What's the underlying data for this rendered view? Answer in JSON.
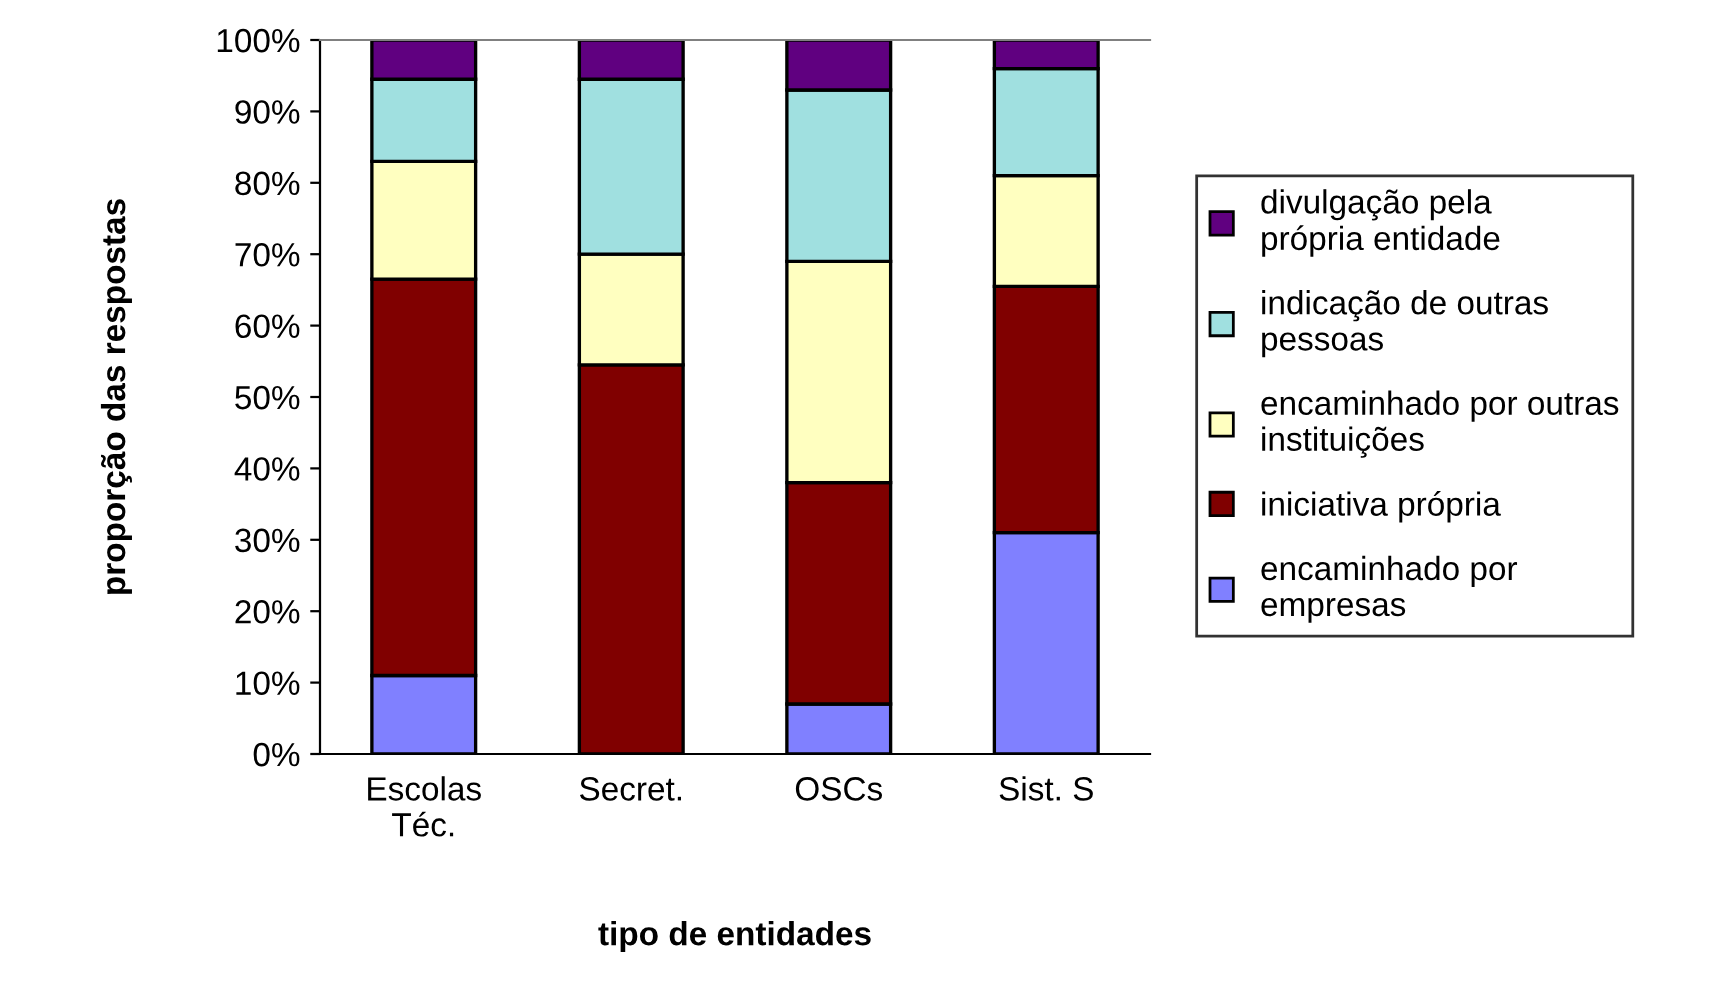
{
  "chart_data": {
    "type": "bar",
    "stacked": true,
    "xlabel": "tipo de entidades",
    "ylabel": "proporção das respostas",
    "categories": [
      "Escolas Téc.",
      "Secret.",
      "OSCs",
      "Sist. S"
    ],
    "series": [
      {
        "name": "encaminhado por empresas",
        "color": "#8080ff",
        "values": [
          11,
          0,
          7,
          31
        ]
      },
      {
        "name": "iniciativa própria",
        "color": "#800000",
        "values": [
          55.5,
          54.5,
          31,
          34.5
        ]
      },
      {
        "name": "encaminhado por outras instituições",
        "color": "#ffffc0",
        "values": [
          16.5,
          15.5,
          31,
          15.5
        ]
      },
      {
        "name": "indicação de outras pessoas",
        "color": "#a0e0e0",
        "values": [
          11.5,
          24.5,
          24,
          15
        ]
      },
      {
        "name": "divulgação pela própria entidade",
        "color": "#600080",
        "values": [
          5.5,
          5.5,
          7,
          4
        ]
      }
    ],
    "ylim": [
      0,
      100
    ],
    "yticks": [
      {
        "value": 0,
        "label": "0%"
      },
      {
        "value": 10,
        "label": "10%"
      },
      {
        "value": 20,
        "label": "20%"
      },
      {
        "value": 30,
        "label": "30%"
      },
      {
        "value": 40,
        "label": "40%"
      },
      {
        "value": 50,
        "label": "50%"
      },
      {
        "value": 60,
        "label": "60%"
      },
      {
        "value": 70,
        "label": "70%"
      },
      {
        "value": 80,
        "label": "80%"
      },
      {
        "value": 90,
        "label": "90%"
      },
      {
        "value": 100,
        "label": "100%"
      }
    ],
    "grid": false,
    "legend": "right"
  }
}
